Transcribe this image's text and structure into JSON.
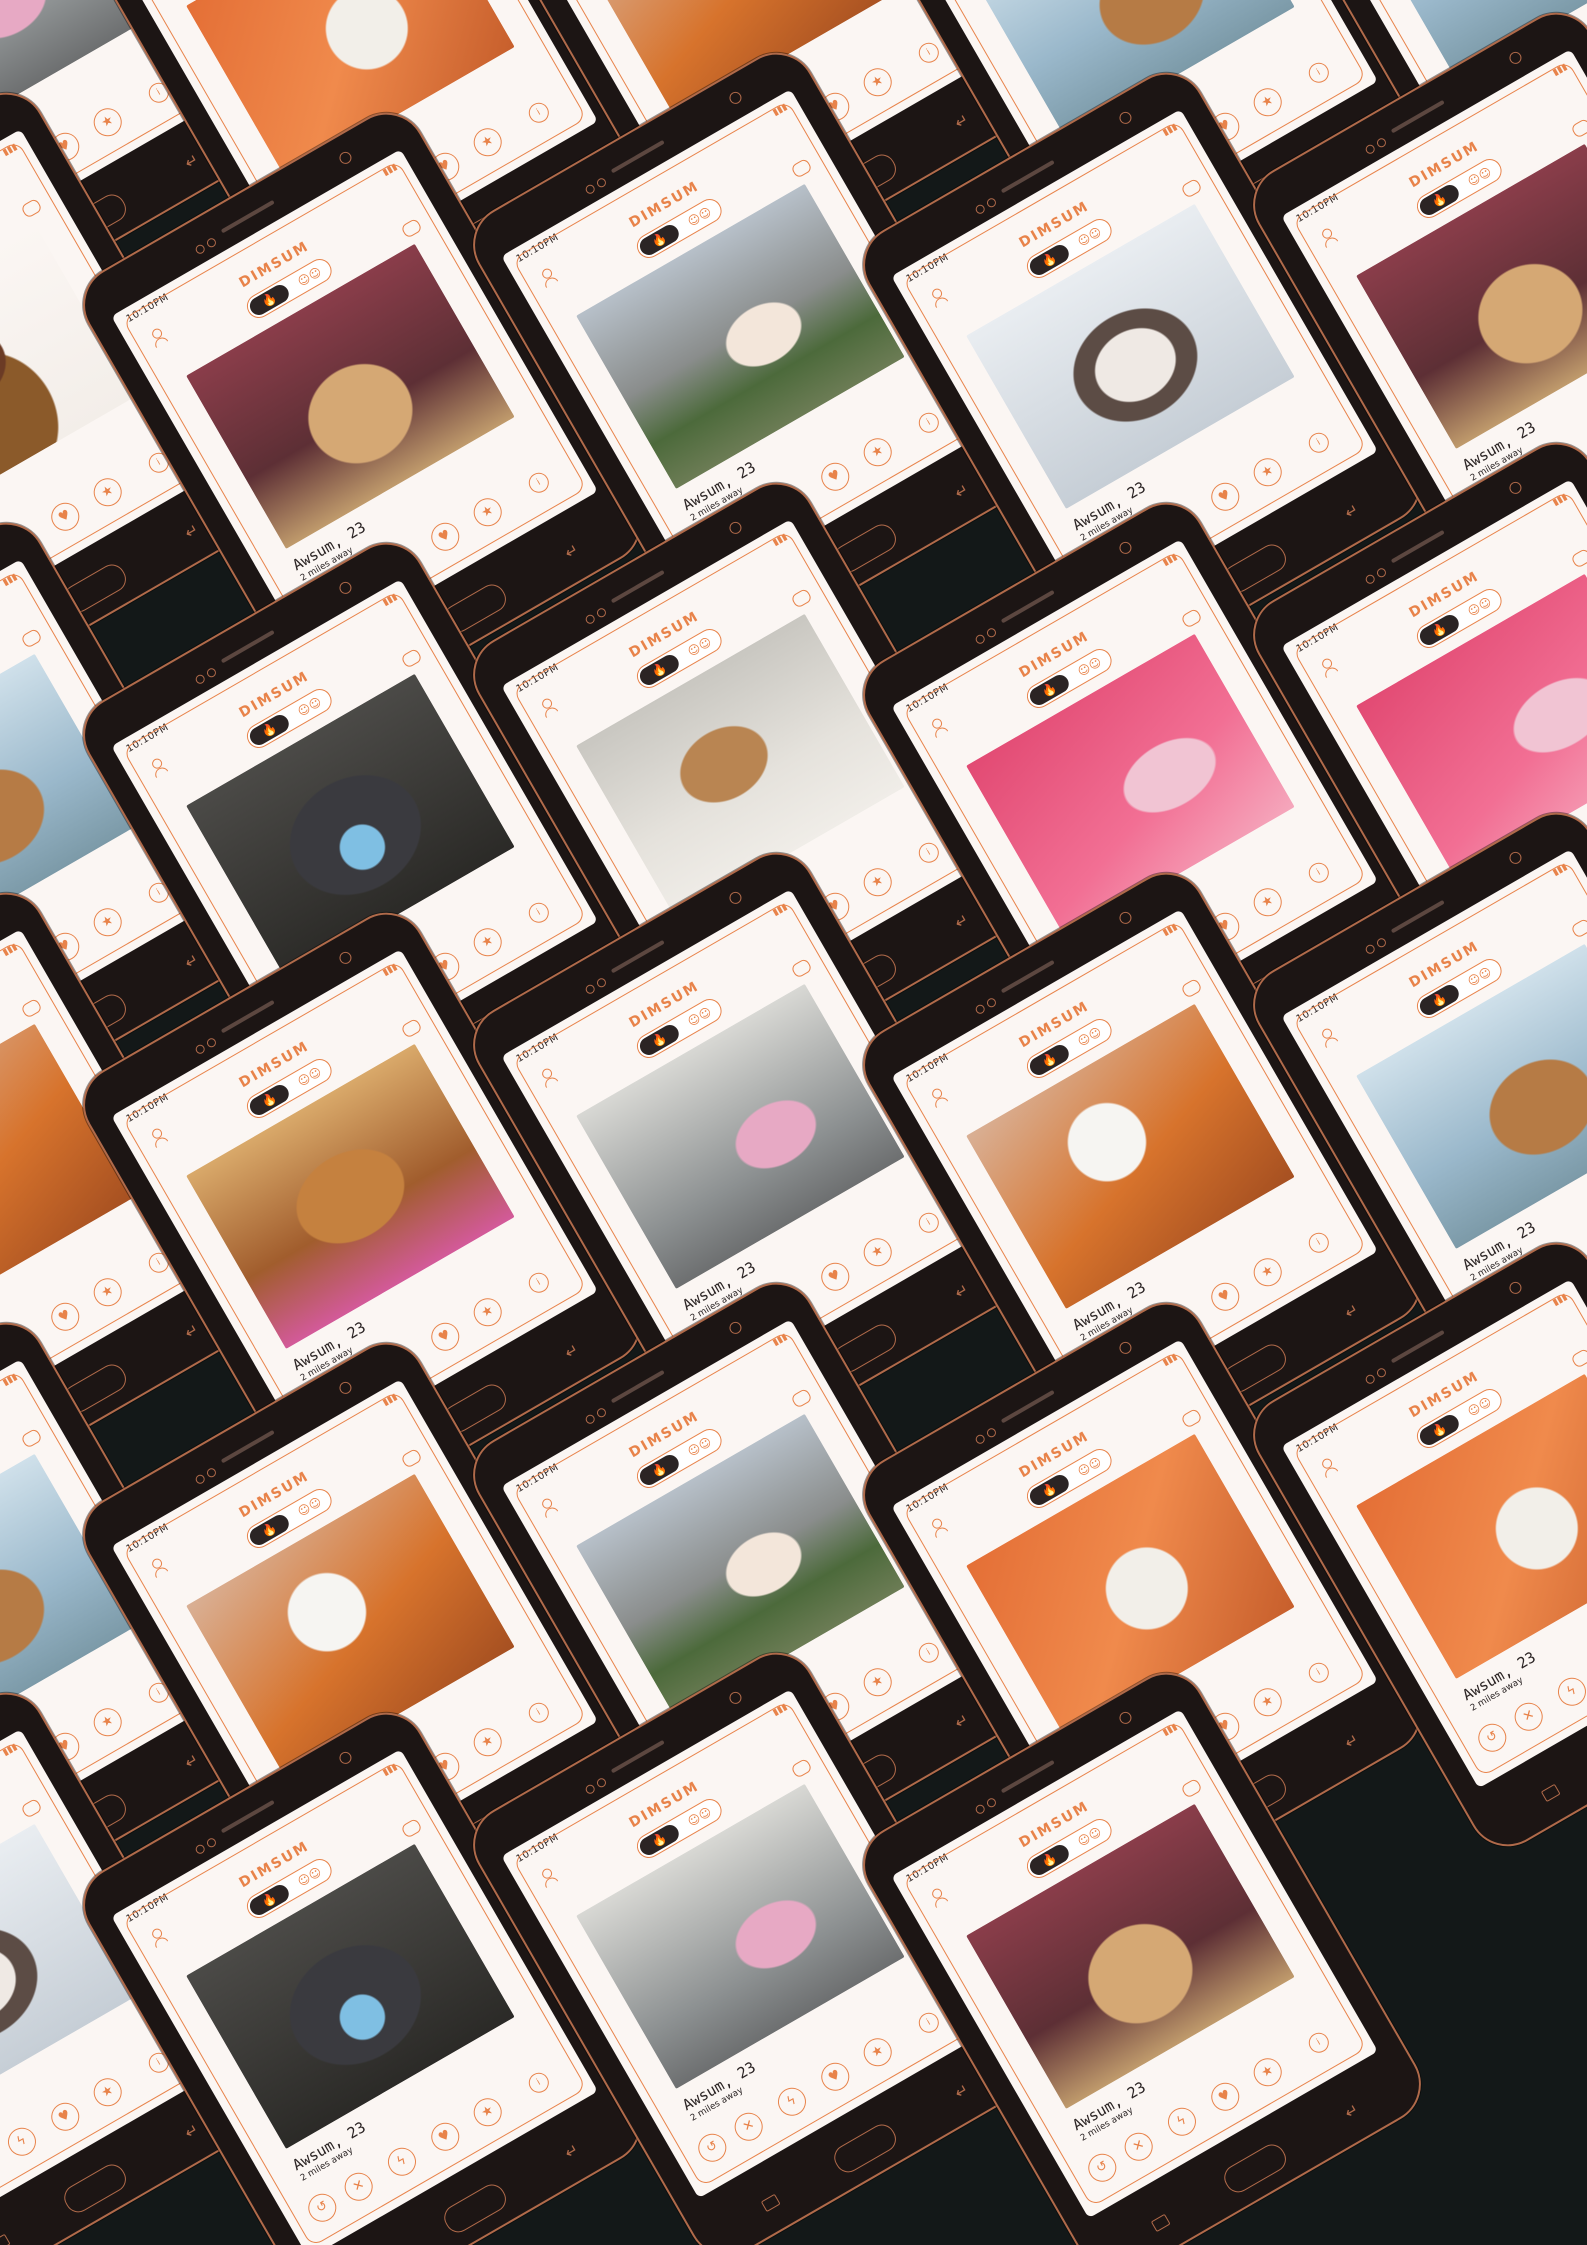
{
  "app": {
    "brand": "DIMSUM",
    "time": "10:10PM",
    "signal": "▮▮▮",
    "toggle_icon": "🔥",
    "people_icon": "☺☺"
  },
  "profile": {
    "name": "Awsum, 23",
    "distance": "2 miles away"
  },
  "actions": [
    {
      "icon": "rewind-icon",
      "glyph": "↺"
    },
    {
      "icon": "close-icon",
      "glyph": "✕"
    },
    {
      "icon": "bolt-icon",
      "glyph": "ϟ"
    },
    {
      "icon": "heart-icon",
      "glyph": "♥"
    },
    {
      "icon": "star-icon",
      "glyph": "★"
    },
    {
      "icon": "info-icon",
      "glyph": "i"
    }
  ],
  "colors": {
    "background": "#131818",
    "accent": "#e8834a",
    "phone": "#1c1514",
    "screen": "#fbf6f3"
  },
  "phones": [
    {
      "photo": "p-frenchie"
    },
    {
      "photo": "p-orange"
    },
    {
      "photo": "p-pom"
    },
    {
      "photo": "p-sky"
    },
    {
      "photo": "p-sky"
    },
    {
      "photo": "p-beehive"
    },
    {
      "photo": "p-cat2"
    },
    {
      "photo": "p-beach"
    },
    {
      "photo": "p-grumpy"
    },
    {
      "photo": "p-cat2"
    },
    {
      "photo": "p-sky"
    },
    {
      "photo": "p-mask"
    },
    {
      "photo": "p-sleep"
    },
    {
      "photo": "p-pink"
    },
    {
      "photo": "p-pink"
    },
    {
      "photo": "p-pom"
    },
    {
      "photo": "p-wig"
    },
    {
      "photo": "p-frenchie"
    },
    {
      "photo": "p-pom"
    },
    {
      "photo": "p-sky"
    },
    {
      "photo": "p-sky"
    },
    {
      "photo": "p-pom"
    },
    {
      "photo": "p-beach"
    },
    {
      "photo": "p-orange"
    },
    {
      "photo": "p-orange"
    },
    {
      "photo": "p-grumpy"
    },
    {
      "photo": "p-mask"
    },
    {
      "photo": "p-frenchie"
    },
    {
      "photo": "p-cat2"
    }
  ]
}
